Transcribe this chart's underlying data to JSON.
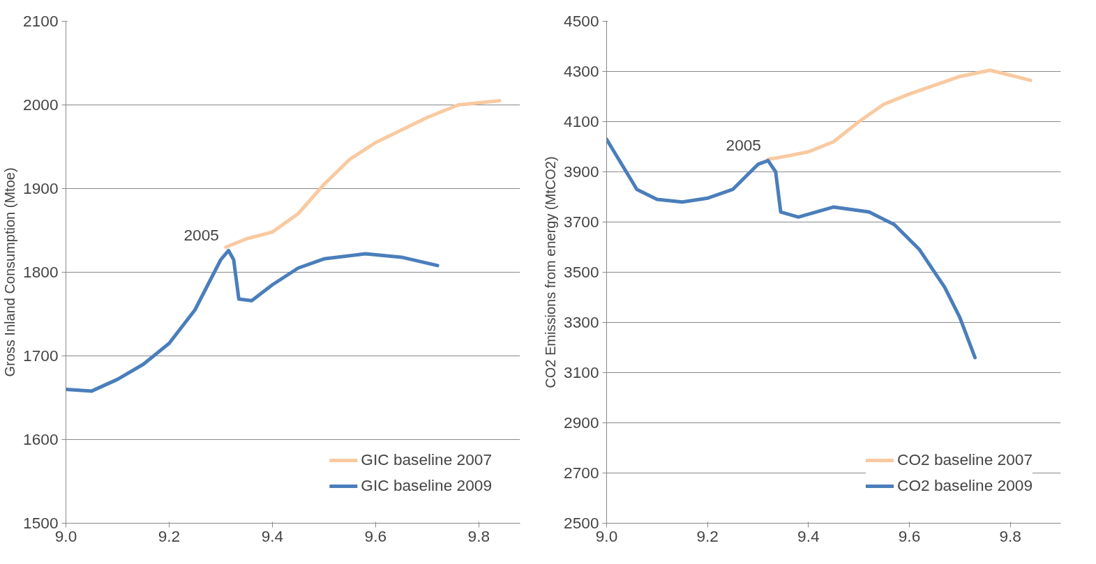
{
  "chart_data": [
    {
      "type": "line",
      "ylabel": "Gross Inland Consumption (Mtoe)",
      "xlim": [
        9.0,
        9.88
      ],
      "xticks": [
        {
          "value": 9.0,
          "label": "9.0"
        },
        9.2,
        9.4,
        9.6,
        9.8
      ],
      "ylim": [
        1500,
        2100
      ],
      "yticks": [
        1500,
        1600,
        1700,
        1800,
        1900,
        2000,
        2100
      ],
      "grid": "y",
      "legend": "bottom right",
      "marker": "none",
      "line_style": "solid",
      "annotations": [
        {
          "text": "2005",
          "x": 9.31,
          "y": 1826
        }
      ],
      "series": [
        {
          "name": "GIC baseline 2007",
          "color": "#f9c9a0",
          "x": [
            9.31,
            9.35,
            9.4,
            9.45,
            9.5,
            9.55,
            9.6,
            9.7,
            9.76,
            9.84
          ],
          "values": [
            1830,
            1840,
            1848,
            1870,
            1905,
            1935,
            1955,
            1985,
            2000,
            2005
          ]
        },
        {
          "name": "GIC baseline 2009",
          "color": "#4a7ebb",
          "x": [
            9.0,
            9.05,
            9.1,
            9.15,
            9.2,
            9.25,
            9.3,
            9.315,
            9.325,
            9.335,
            9.36,
            9.4,
            9.45,
            9.5,
            9.58,
            9.65,
            9.72
          ],
          "values": [
            1660,
            1658,
            1672,
            1690,
            1715,
            1755,
            1815,
            1826,
            1815,
            1768,
            1766,
            1785,
            1805,
            1816,
            1822,
            1818,
            1808
          ]
        }
      ]
    },
    {
      "type": "line",
      "ylabel": "CO2 Emissions from energy (MtCO2)",
      "xlim": [
        9.0,
        9.9
      ],
      "xticks": [
        {
          "value": 9.0,
          "label": "9.0"
        },
        9.2,
        9.4,
        9.6,
        9.8
      ],
      "ylim": [
        2500,
        4500
      ],
      "yticks": [
        2500,
        2700,
        2900,
        3100,
        3300,
        3500,
        3700,
        3900,
        4100,
        4300,
        4500
      ],
      "grid": "y",
      "legend": "bottom right",
      "marker": "none",
      "line_style": "solid",
      "annotations": [
        {
          "text": "2005",
          "x": 9.32,
          "y": 3945
        }
      ],
      "series": [
        {
          "name": "CO2 baseline 2007",
          "color": "#f9c9a0",
          "x": [
            9.32,
            9.35,
            9.4,
            9.45,
            9.5,
            9.55,
            9.6,
            9.7,
            9.76,
            9.84
          ],
          "values": [
            3950,
            3960,
            3980,
            4020,
            4100,
            4170,
            4210,
            4280,
            4305,
            4265
          ]
        },
        {
          "name": "CO2 baseline 2009",
          "color": "#4a7ebb",
          "x": [
            9.0,
            9.03,
            9.06,
            9.1,
            9.15,
            9.2,
            9.25,
            9.3,
            9.32,
            9.335,
            9.345,
            9.38,
            9.45,
            9.52,
            9.57,
            9.62,
            9.67,
            9.7,
            9.73
          ],
          "values": [
            4030,
            3930,
            3830,
            3790,
            3780,
            3795,
            3830,
            3930,
            3945,
            3900,
            3740,
            3720,
            3760,
            3740,
            3690,
            3590,
            3440,
            3320,
            3160
          ]
        }
      ]
    }
  ]
}
